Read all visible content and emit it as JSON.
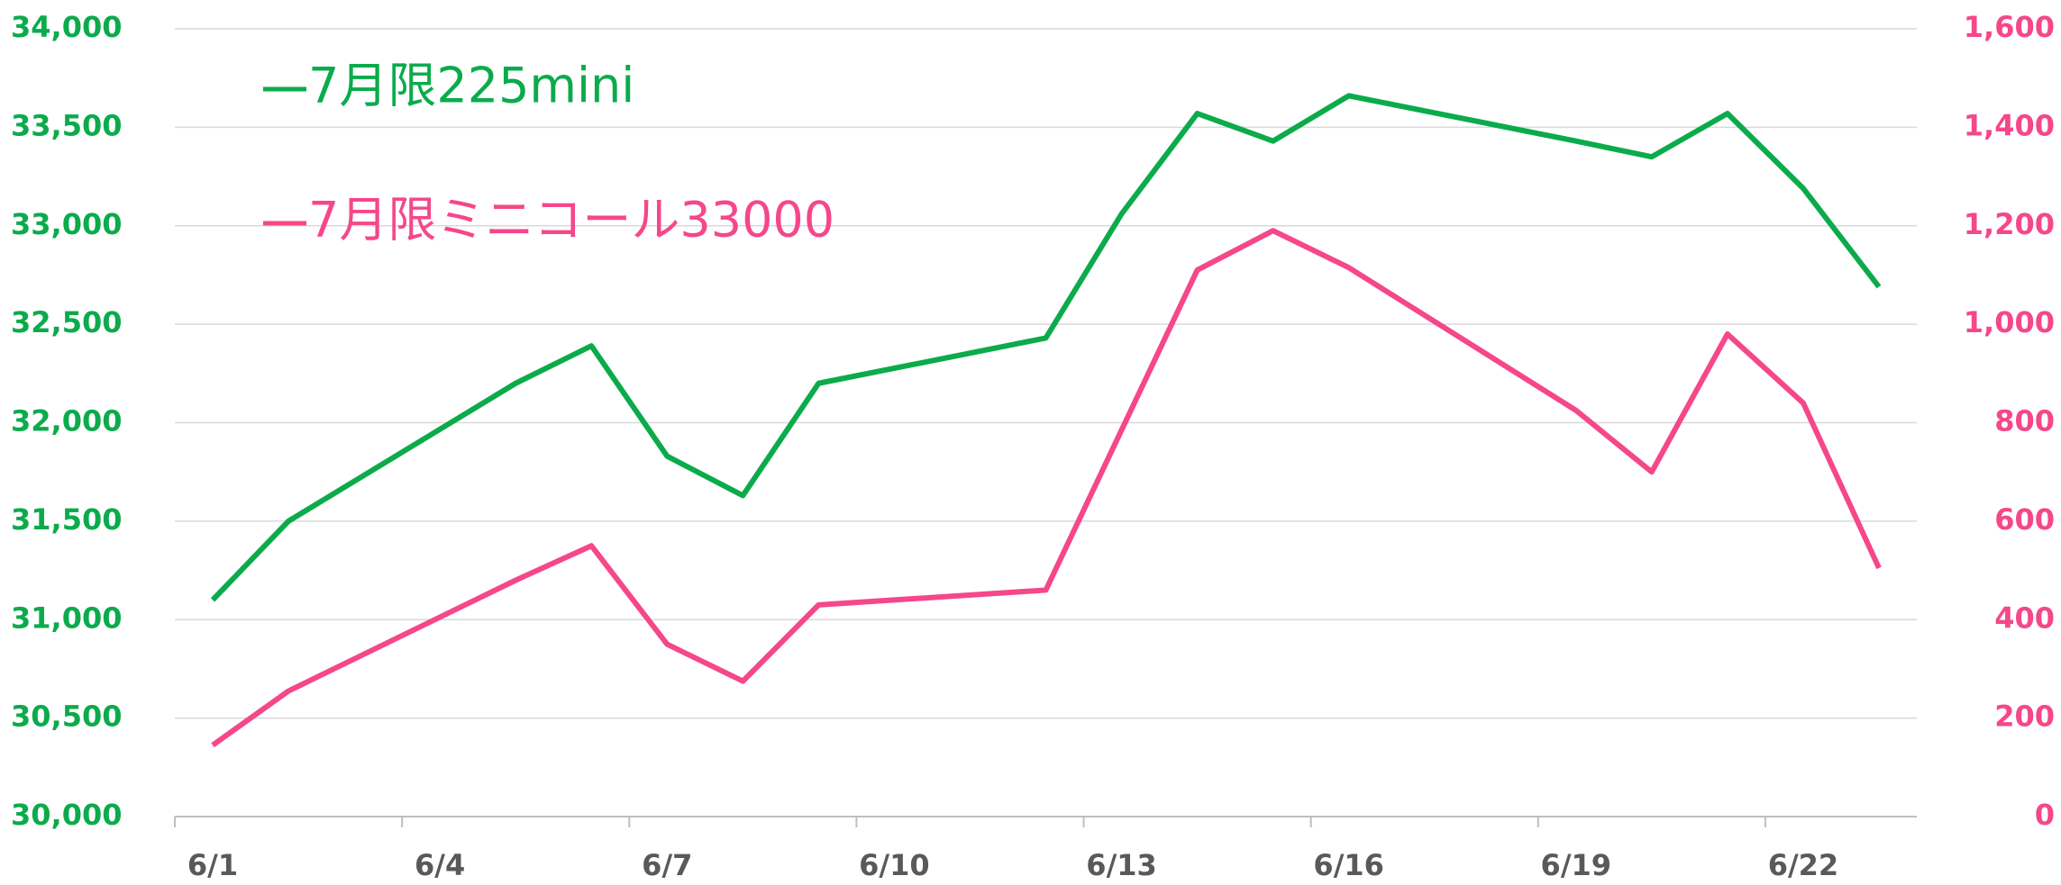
{
  "chart_data": {
    "type": "line",
    "x": [
      1,
      2,
      5,
      6,
      7,
      8,
      9,
      12,
      13,
      14,
      15,
      16,
      19,
      20,
      21,
      22,
      23
    ],
    "xlim": [
      0.5,
      23.5
    ],
    "xticks": [
      {
        "value": 1,
        "label": "6/1"
      },
      {
        "value": 4,
        "label": "6/4"
      },
      {
        "value": 7,
        "label": "6/7"
      },
      {
        "value": 10,
        "label": "6/10"
      },
      {
        "value": 13,
        "label": "6/13"
      },
      {
        "value": 16,
        "label": "6/16"
      },
      {
        "value": 19,
        "label": "6/19"
      },
      {
        "value": 22,
        "label": "6/22"
      }
    ],
    "ylim": [
      30000,
      34000
    ],
    "yticks": [
      {
        "value": 30000,
        "label": "30,000"
      },
      {
        "value": 30500,
        "label": "30,500"
      },
      {
        "value": 31000,
        "label": "31,000"
      },
      {
        "value": 31500,
        "label": "31,500"
      },
      {
        "value": 32000,
        "label": "32,000"
      },
      {
        "value": 32500,
        "label": "32,500"
      },
      {
        "value": 33000,
        "label": "33,000"
      },
      {
        "value": 33500,
        "label": "33,500"
      },
      {
        "value": 34000,
        "label": "34,000"
      }
    ],
    "y2lim": [
      0,
      1600
    ],
    "y2ticks": [
      0,
      200,
      400,
      600,
      800,
      {
        "value": 1000,
        "label": "1,000"
      },
      {
        "value": 1200,
        "label": "1,200"
      },
      {
        "value": 1400,
        "label": "1,400"
      },
      {
        "value": 1600,
        "label": "1,600"
      }
    ],
    "grid": true,
    "legend": "upper left",
    "series": [
      {
        "name": "7月限225mini",
        "color": "#0bab4b",
        "axis": "y",
        "values": [
          31100,
          31500,
          32200,
          32390,
          31830,
          31630,
          32200,
          32430,
          33060,
          33570,
          33430,
          33660,
          33430,
          33350,
          33570,
          33190,
          32690
        ]
      },
      {
        "name": "7月限ミニコール33000",
        "color": "#f5478a",
        "axis": "y2",
        "values": [
          145,
          255,
          480,
          550,
          350,
          275,
          430,
          460,
          785,
          1110,
          1190,
          1115,
          825,
          700,
          980,
          840,
          505
        ]
      }
    ]
  }
}
